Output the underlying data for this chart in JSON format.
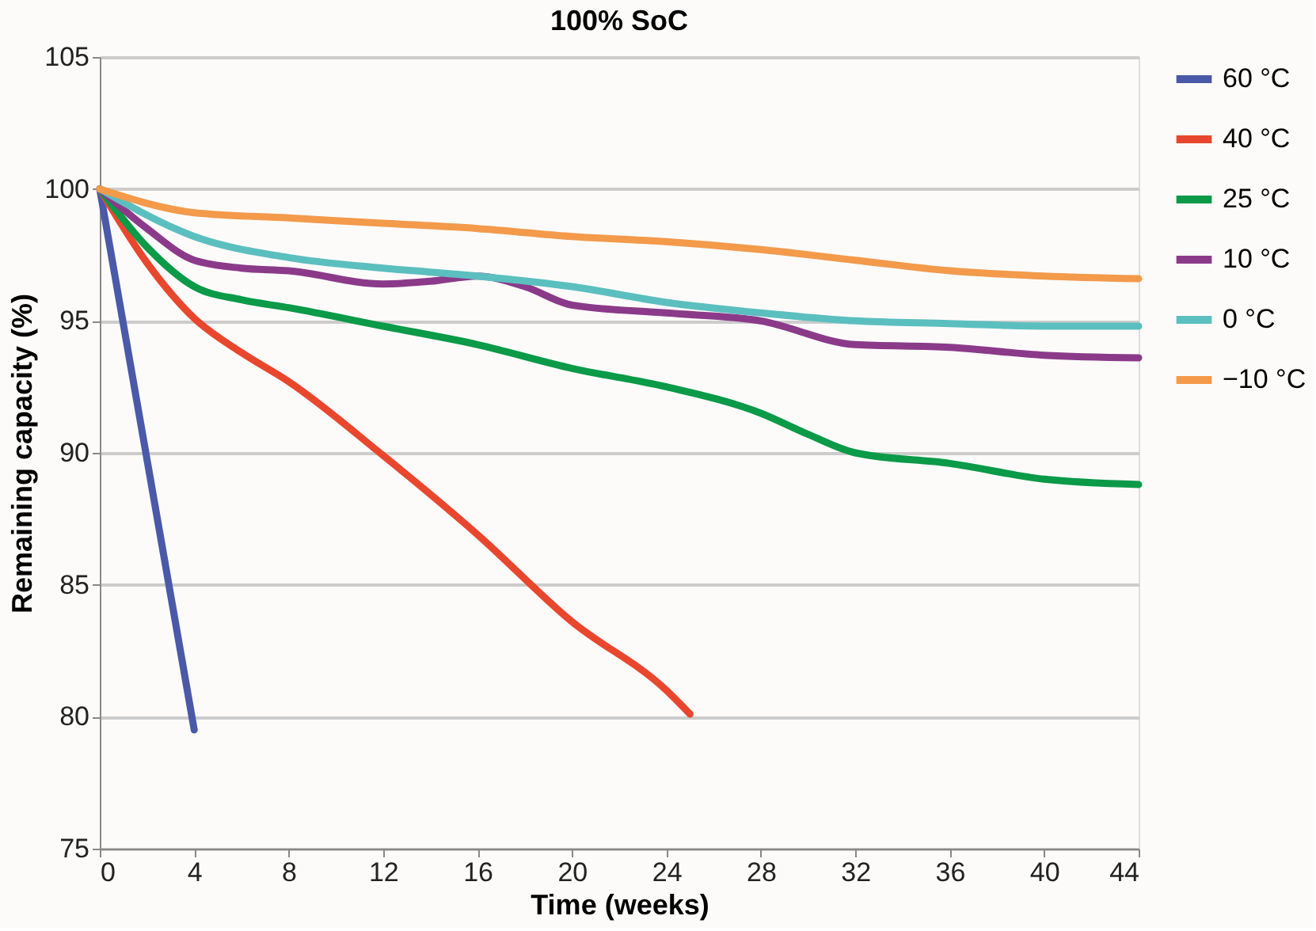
{
  "chart_data": {
    "type": "line",
    "title": "100% SoC",
    "xlabel": "Time (weeks)",
    "ylabel": "Remaining capacity (%)",
    "xlim": [
      0,
      44
    ],
    "xticks": [
      0,
      4,
      8,
      12,
      16,
      20,
      24,
      28,
      32,
      36,
      40,
      44
    ],
    "ylim": [
      75,
      105
    ],
    "yticks": [
      75,
      80,
      85,
      90,
      95,
      100,
      105
    ],
    "grid": "y",
    "legend": "right",
    "marker": "none",
    "line_style": "solid",
    "series": [
      {
        "name": "60 °C",
        "color": "#4a5aa8",
        "x": [
          0,
          4
        ],
        "values": [
          100,
          79.5
        ]
      },
      {
        "name": "40 °C",
        "color": "#e8472e",
        "x": [
          0,
          2,
          4,
          6,
          8,
          12,
          16,
          20,
          24,
          25
        ],
        "values": [
          100,
          97.2,
          95.1,
          93.8,
          92.7,
          89.9,
          86.9,
          83.6,
          81.0,
          80.1
        ]
      },
      {
        "name": "25 °C",
        "color": "#0a9a48",
        "x": [
          0,
          2,
          4,
          6,
          8,
          12,
          16,
          20,
          24,
          28,
          30,
          32,
          36,
          40,
          44
        ],
        "values": [
          100,
          97.8,
          96.3,
          95.8,
          95.5,
          94.8,
          94.1,
          93.2,
          92.5,
          91.5,
          90.7,
          90.0,
          89.6,
          89.0,
          88.8
        ]
      },
      {
        "name": "10 °C",
        "color": "#8b3a8a",
        "x": [
          0,
          2,
          4,
          6,
          8,
          12,
          14,
          16,
          18,
          20,
          24,
          28,
          32,
          36,
          40,
          44
        ],
        "values": [
          100,
          98.5,
          97.3,
          97.0,
          96.9,
          96.4,
          96.5,
          96.7,
          96.3,
          95.6,
          95.3,
          95.0,
          94.1,
          94.0,
          93.7,
          93.6
        ]
      },
      {
        "name": "0 °C",
        "color": "#5bbfbf",
        "x": [
          0,
          4,
          8,
          12,
          16,
          20,
          24,
          28,
          32,
          36,
          40,
          44
        ],
        "values": [
          100,
          98.2,
          97.4,
          97.0,
          96.7,
          96.3,
          95.7,
          95.3,
          95.0,
          94.9,
          94.8,
          94.8
        ]
      },
      {
        "name": "−10 °C",
        "color": "#f39a4b",
        "x": [
          0,
          4,
          8,
          12,
          16,
          20,
          24,
          28,
          32,
          36,
          40,
          44
        ],
        "values": [
          100,
          99.1,
          98.9,
          98.7,
          98.5,
          98.2,
          98.0,
          97.7,
          97.3,
          96.9,
          96.7,
          96.6
        ]
      }
    ]
  }
}
